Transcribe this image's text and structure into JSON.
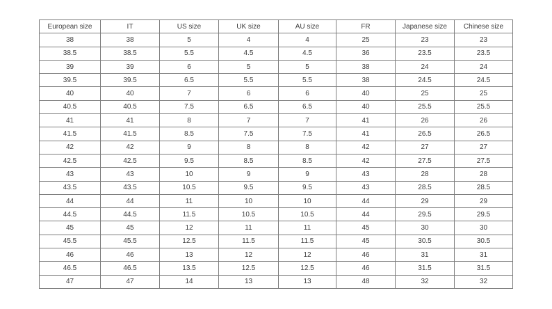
{
  "table": {
    "name": "shoe-size-conversion-table",
    "headers": [
      "European size",
      "IT",
      "US size",
      "UK size",
      "AU size",
      "FR",
      "Japanese size",
      "Chinese size"
    ],
    "rows": [
      [
        "38",
        "38",
        "5",
        "4",
        "4",
        "25",
        "23",
        "23"
      ],
      [
        "38.5",
        "38.5",
        "5.5",
        "4.5",
        "4.5",
        "36",
        "23.5",
        "23.5"
      ],
      [
        "39",
        "39",
        "6",
        "5",
        "5",
        "38",
        "24",
        "24"
      ],
      [
        "39.5",
        "39.5",
        "6.5",
        "5.5",
        "5.5",
        "38",
        "24.5",
        "24.5"
      ],
      [
        "40",
        "40",
        "7",
        "6",
        "6",
        "40",
        "25",
        "25"
      ],
      [
        "40.5",
        "40.5",
        "7.5",
        "6.5",
        "6.5",
        "40",
        "25.5",
        "25.5"
      ],
      [
        "41",
        "41",
        "8",
        "7",
        "7",
        "41",
        "26",
        "26"
      ],
      [
        "41.5",
        "41.5",
        "8.5",
        "7.5",
        "7.5",
        "41",
        "26.5",
        "26.5"
      ],
      [
        "42",
        "42",
        "9",
        "8",
        "8",
        "42",
        "27",
        "27"
      ],
      [
        "42.5",
        "42.5",
        "9.5",
        "8.5",
        "8.5",
        "42",
        "27.5",
        "27.5"
      ],
      [
        "43",
        "43",
        "10",
        "9",
        "9",
        "43",
        "28",
        "28"
      ],
      [
        "43.5",
        "43.5",
        "10.5",
        "9.5",
        "9.5",
        "43",
        "28.5",
        "28.5"
      ],
      [
        "44",
        "44",
        "11",
        "10",
        "10",
        "44",
        "29",
        "29"
      ],
      [
        "44.5",
        "44.5",
        "11.5",
        "10.5",
        "10.5",
        "44",
        "29.5",
        "29.5"
      ],
      [
        "45",
        "45",
        "12",
        "11",
        "11",
        "45",
        "30",
        "30"
      ],
      [
        "45.5",
        "45.5",
        "12.5",
        "11.5",
        "11.5",
        "45",
        "30.5",
        "30.5"
      ],
      [
        "46",
        "46",
        "13",
        "12",
        "12",
        "46",
        "31",
        "31"
      ],
      [
        "46.5",
        "46.5",
        "13.5",
        "12.5",
        "12.5",
        "46",
        "31.5",
        "31.5"
      ],
      [
        "47",
        "47",
        "14",
        "13",
        "13",
        "48",
        "32",
        "32"
      ]
    ]
  },
  "colors": {
    "border": "#7d7d7d",
    "text": "#3c3c3c",
    "background": "#ffffff"
  }
}
